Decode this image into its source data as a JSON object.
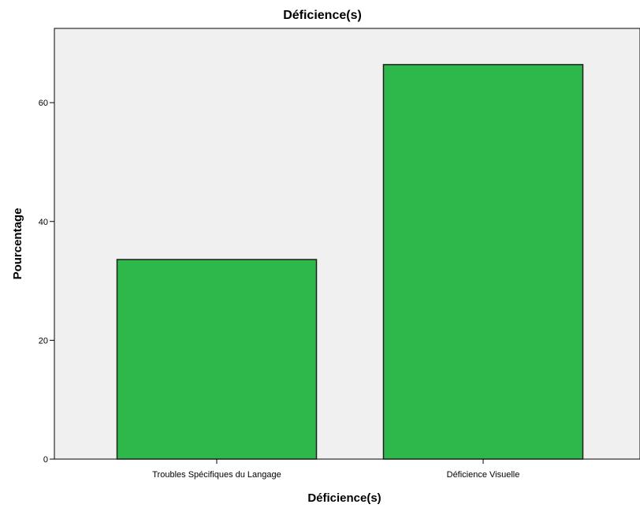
{
  "chart_data": {
    "type": "bar",
    "title": "Déficience(s)",
    "xlabel": "Déficience(s)",
    "ylabel": "Pourcentage",
    "categories": [
      "Troubles Spécifiques du Langage",
      "Déficience Visuelle"
    ],
    "values": [
      33.6,
      66.4
    ],
    "ylim": [
      0,
      72.5
    ],
    "yticks": [
      "0",
      "20",
      "40",
      "60"
    ],
    "grid": false,
    "colors": {
      "bar_fill": "#2eb84b",
      "bar_stroke": "#1e1e1e",
      "plot_background": "#f0f0f0"
    }
  }
}
